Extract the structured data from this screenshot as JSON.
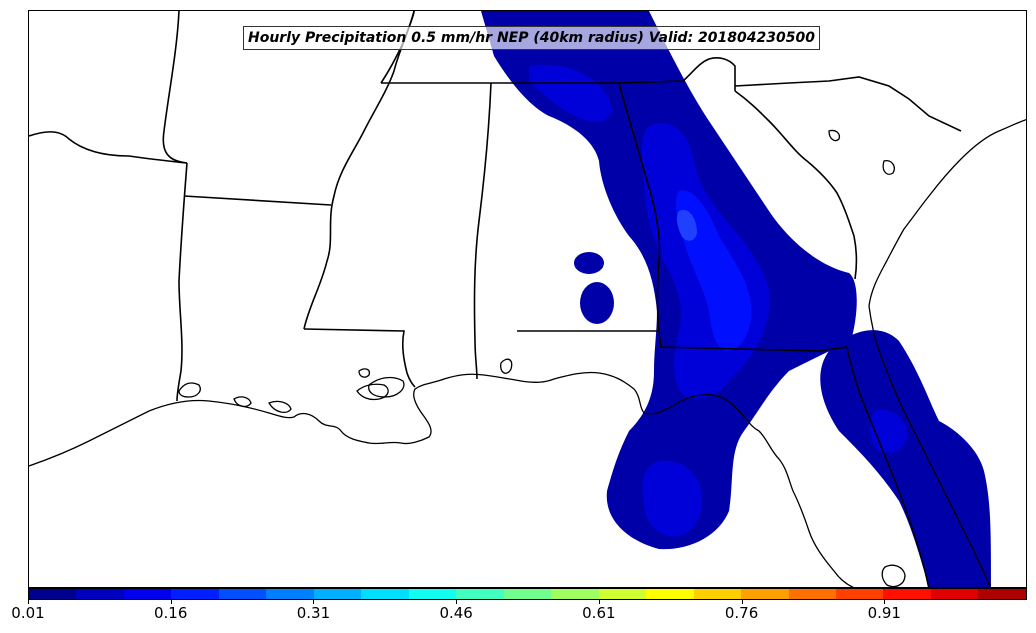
{
  "title": "Hourly Precipitation 0.5 mm/hr NEP (40km radius) Valid: 201804230500",
  "colorbar": {
    "colors": [
      "#00008f",
      "#0000bf",
      "#0000ef",
      "#0020ff",
      "#0050ff",
      "#0080ff",
      "#00afff",
      "#00dfff",
      "#10ffef",
      "#40ffbf",
      "#70ff8f",
      "#9fff60",
      "#cfff30",
      "#ffff00",
      "#ffcf00",
      "#ff9f00",
      "#ff7000",
      "#ff4000",
      "#ff1000",
      "#df0000",
      "#af0000"
    ],
    "tick_labels": [
      "0.01",
      "0.16",
      "0.31",
      "0.46",
      "0.61",
      "0.76",
      "0.91"
    ],
    "min": 0.01,
    "max": 1.01
  },
  "map": {
    "region": "Southeastern United States",
    "land_color": "#ffffff",
    "boundary_color": "#000000",
    "precip_colors": {
      "low": "#0000a8",
      "mid": "#0000d8",
      "high": "#0010ff"
    }
  }
}
